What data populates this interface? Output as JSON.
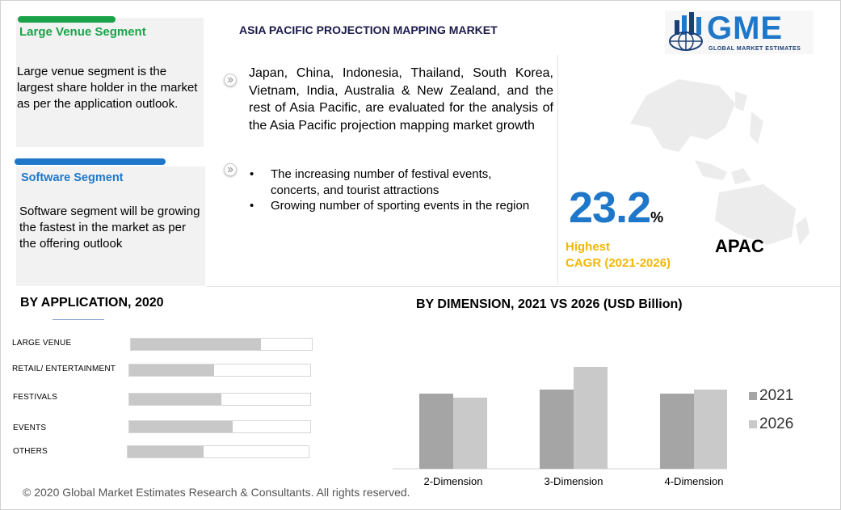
{
  "header": {
    "title": "ASIA PACIFIC PROJECTION MAPPING MARKET"
  },
  "logo": {
    "text": "GME",
    "subtitle": "GLOBAL MARKET ESTIMATES"
  },
  "colors": {
    "green": "#1aa34a",
    "blue": "#1f77c9",
    "dark_blue": "#1a3f75",
    "gold": "#f2b705",
    "bar_dark": "#a5a5a5",
    "bar_light": "#c9c9c9"
  },
  "cards": [
    {
      "title": "Large Venue Segment",
      "body": "Large venue segment is the largest share holder in the market as per the application outlook."
    },
    {
      "title": "Software Segment",
      "body": "Software segment will be growing the fastest in the market as per the offering outlook"
    }
  ],
  "intro": {
    "icon": "arrow-right-icon",
    "text": "Japan, China, Indonesia, Thailand, South Korea, Vietnam, India, Australia & New Zealand, and the rest of Asia Pacific, are evaluated for the analysis of the Asia Pacific projection mapping market growth"
  },
  "drivers": [
    "The increasing number of festival events, concerts, and tourist attractions",
    "Growing number of sporting events in the region"
  ],
  "stat": {
    "value": "23.2",
    "unit": "%",
    "line1": "Highest",
    "line2": "CAGR (2021-2026)",
    "region": "APAC"
  },
  "footer": {
    "text": "© 2020 Global Market Estimates Research & Consultants. All rights reserved."
  },
  "chart_data": [
    {
      "type": "bar",
      "orientation": "horizontal",
      "title": "BY APPLICATION, 2020",
      "categories": [
        "LARGE VENUE",
        "RETAIL/ ENTERTAINMENT",
        "FESTIVALS",
        "EVENTS",
        "OTHERS"
      ],
      "values": [
        72,
        47,
        51,
        57,
        42
      ],
      "ylim": [
        0,
        100
      ]
    },
    {
      "type": "bar",
      "title": "BY  DIMENSION,  2021 VS 2026 (USD Billion)",
      "categories": [
        "2-Dimension",
        "3-Dimension",
        "4-Dimension"
      ],
      "series": [
        {
          "name": "2021",
          "values": [
            93,
            98,
            93
          ]
        },
        {
          "name": "2026",
          "values": [
            88,
            126,
            98
          ]
        }
      ],
      "ylim": [
        0,
        130
      ],
      "legend": "right"
    }
  ]
}
